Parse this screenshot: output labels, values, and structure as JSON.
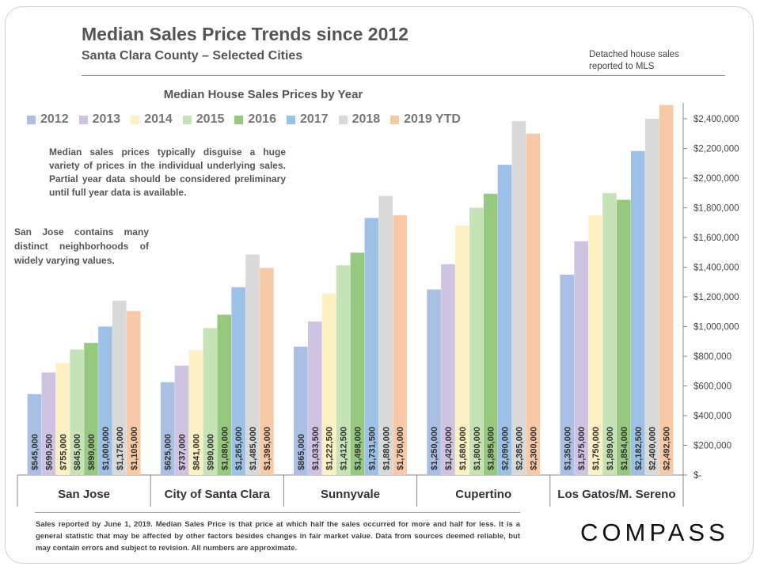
{
  "header": {
    "title": "Median Sales Price Trends since 2012",
    "subtitle": "Santa Clara County – Selected Cities",
    "note_line1": "Detached house sales",
    "note_line2": "reported to MLS"
  },
  "annotations": {
    "general": "Median sales prices typically disguise a huge variety of prices in the individual underlying sales. Partial year data should be considered preliminary until full year data is available.",
    "san_jose": "San Jose contains many distinct neighborhoods of widely varying values."
  },
  "footnote": "Sales reported by June 1, 2019. Median Sales Price is that price at which half the sales occurred for more and half for less. It is a general statistic that may be affected by other factors besides changes in fair market value. Data from sources deemed reliable, but may contain errors and subject to revision. All numbers are approximate.",
  "brand": "COMPASS",
  "colors": {
    "2012": "#a9bfe3",
    "2013": "#cfc3e2",
    "2014": "#fdf1c4",
    "2015": "#c6e3b7",
    "2016": "#96c97f",
    "2017": "#9dc0e7",
    "2018": "#d9d9d9",
    "2019 YTD": "#f8c9a6"
  },
  "chart_data": {
    "type": "bar",
    "title": "Median House Sales Prices by Year",
    "categories": [
      "San Jose",
      "City of Santa Clara",
      "Sunnyvale",
      "Cupertino",
      "Los Gatos/M. Sereno"
    ],
    "ylim": [
      0,
      2400000
    ],
    "y_ticks": [
      "$-",
      "$200,000",
      "$400,000",
      "$600,000",
      "$800,000",
      "$1,000,000",
      "$1,200,000",
      "$1,400,000",
      "$1,600,000",
      "$1,800,000",
      "$2,000,000",
      "$2,200,000",
      "$2,400,000"
    ],
    "y_tick_values": [
      0,
      200000,
      400000,
      600000,
      800000,
      1000000,
      1200000,
      1400000,
      1600000,
      1800000,
      2000000,
      2200000,
      2400000
    ],
    "legend_position": "top",
    "grid": false,
    "series": [
      {
        "name": "2012",
        "values": [
          545000,
          625000,
          865000,
          1250000,
          1350000
        ],
        "labels": [
          "$545,000",
          "$625,000",
          "$865,000",
          "$1,250,000",
          "$1,350,000"
        ]
      },
      {
        "name": "2013",
        "values": [
          690500,
          737000,
          1033500,
          1420000,
          1575000
        ],
        "labels": [
          "$690,500",
          "$737,000",
          "$1,033,500",
          "$1,420,000",
          "$1,575,000"
        ]
      },
      {
        "name": "2014",
        "values": [
          755000,
          841000,
          1222500,
          1680000,
          1750000
        ],
        "labels": [
          "$755,000",
          "$841,000",
          "$1,222,500",
          "$1,680,000",
          "$1,750,000"
        ]
      },
      {
        "name": "2015",
        "values": [
          845000,
          990000,
          1412500,
          1800000,
          1899000
        ],
        "labels": [
          "$845,000",
          "$990,000",
          "$1,412,500",
          "$1,800,000",
          "$1,899,000"
        ]
      },
      {
        "name": "2016",
        "values": [
          890000,
          1080000,
          1498000,
          1895000,
          1854000
        ],
        "labels": [
          "$890,000",
          "$1,080,000",
          "$1,498,000",
          "$1,895,000",
          "$1,854,000"
        ]
      },
      {
        "name": "2017",
        "values": [
          1000000,
          1265000,
          1731500,
          2090000,
          2182500
        ],
        "labels": [
          "$1,000,000",
          "$1,265,000",
          "$1,731,500",
          "$2,090,000",
          "$2,182,500"
        ]
      },
      {
        "name": "2018",
        "values": [
          1175000,
          1485000,
          1880000,
          2385000,
          2400000
        ],
        "labels": [
          "$1,175,000",
          "$1,485,000",
          "$1,880,000",
          "$2,385,000",
          "$2,400,000"
        ]
      },
      {
        "name": "2019 YTD",
        "values": [
          1105000,
          1395000,
          1750000,
          2300000,
          2492500
        ],
        "labels": [
          "$1,105,000",
          "$1,395,000",
          "$1,750,000",
          "$2,300,000",
          "$2,492,500"
        ]
      }
    ]
  }
}
